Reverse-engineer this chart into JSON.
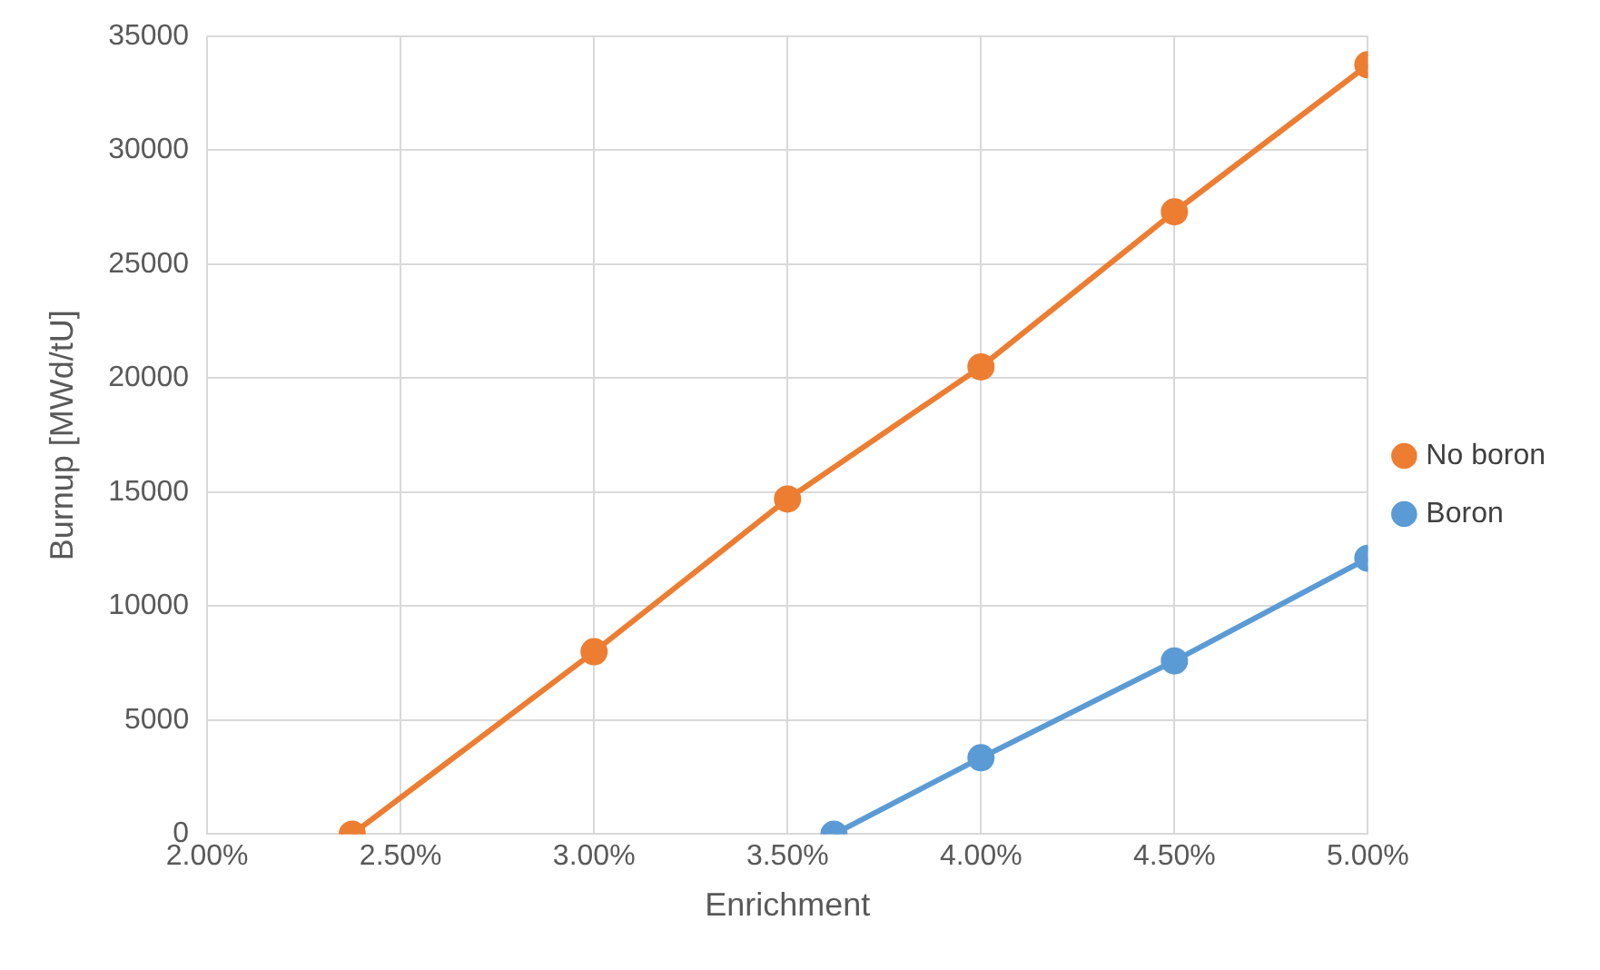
{
  "chart_data": {
    "type": "line",
    "xlabel": "Enrichment",
    "ylabel": "Burnup [MWd/tU]",
    "xlim": [
      2.0,
      5.0
    ],
    "xticks": [
      {
        "value": 2.0,
        "label": "2.00%"
      },
      {
        "value": 2.5,
        "label": "2.50%"
      },
      {
        "value": 3.0,
        "label": "3.00%"
      },
      {
        "value": 3.5,
        "label": "3.50%"
      },
      {
        "value": 4.0,
        "label": "4.00%"
      },
      {
        "value": 4.5,
        "label": "4.50%"
      },
      {
        "value": 5.0,
        "label": "5.00%"
      }
    ],
    "ylim": [
      0,
      35000
    ],
    "yticks": [
      0,
      5000,
      10000,
      15000,
      20000,
      25000,
      30000,
      35000
    ],
    "grid": true,
    "legend": "right",
    "marker": "circle",
    "line_style": "solid",
    "series": [
      {
        "name": "No boron",
        "color": "#ed7d31",
        "x": [
          2.375,
          3.0,
          3.5,
          4.0,
          4.5,
          5.0
        ],
        "values": [
          0,
          8000,
          14700,
          20500,
          27300,
          33750
        ]
      },
      {
        "name": "Boron",
        "color": "#5b9bd5",
        "x": [
          3.62,
          4.0,
          4.5,
          5.0
        ],
        "values": [
          0,
          3350,
          7600,
          12100
        ]
      }
    ]
  }
}
